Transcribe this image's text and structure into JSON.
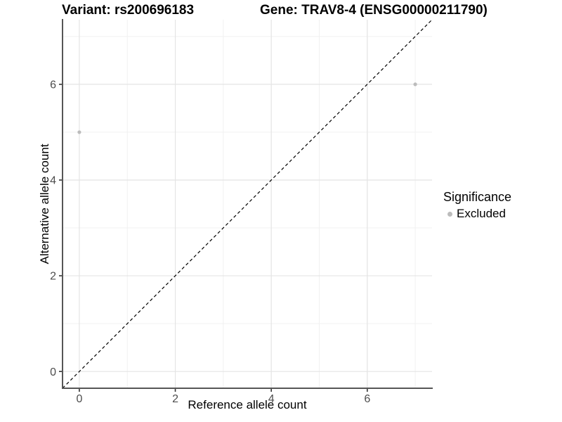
{
  "header": {
    "title_left": "Variant: rs200696183",
    "title_right": "Gene: TRAV8-4 (ENSG00000211790)"
  },
  "chart_data": {
    "type": "scatter",
    "title": "Variant: rs200696183   Gene: TRAV8-4 (ENSG00000211790)",
    "xlabel": "Reference allele count",
    "ylabel": "Alternative allele count",
    "xlim": [
      -0.35,
      7.35
    ],
    "ylim": [
      -0.35,
      7.35
    ],
    "x_major_ticks": [
      0,
      2,
      4,
      6
    ],
    "y_major_ticks": [
      0,
      2,
      4,
      6
    ],
    "x_minor_ticks": [
      1,
      3,
      5,
      7
    ],
    "y_minor_ticks": [
      1,
      3,
      5,
      7
    ],
    "grid": "on",
    "reference_line": {
      "equation": "y = x",
      "style": "dashed",
      "color": "#000000",
      "from": [
        -0.35,
        -0.35
      ],
      "to": [
        7.35,
        7.35
      ]
    },
    "series": [
      {
        "name": "Excluded",
        "color": "#bcbcbc",
        "points": [
          {
            "x": 0,
            "y": 5
          },
          {
            "x": 7,
            "y": 6
          }
        ]
      }
    ],
    "legend": {
      "title": "Significance",
      "position": "right",
      "items": [
        {
          "label": "Excluded",
          "color": "#bcbcbc"
        }
      ]
    }
  },
  "colors": {
    "background": "#ffffff",
    "grid_major": "#e4e4e4",
    "grid_minor": "#f1f1f1",
    "axis_line": "#565656",
    "tick_mark": "#333333",
    "tick_label": "#4d4d4d",
    "text": "#000000"
  }
}
